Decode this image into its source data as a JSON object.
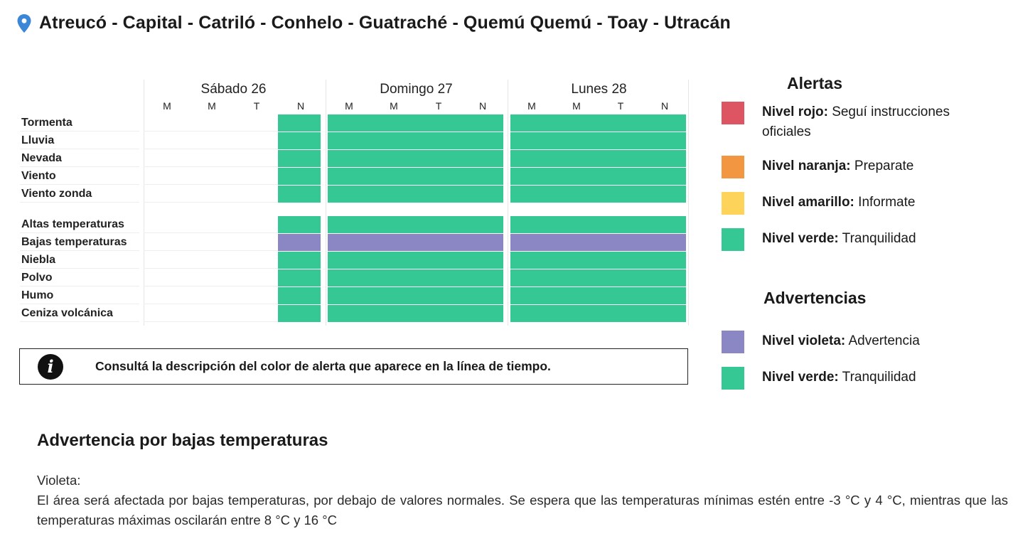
{
  "header": {
    "title": "Atreucó - Capital - Catriló - Conhelo - Guatraché - Quemú Quemú - Toay - Utracán",
    "icon": "location-pin-icon"
  },
  "timeline": {
    "days": [
      {
        "label": "Sábado 26",
        "shifts": [
          "M",
          "M",
          "T",
          "N"
        ]
      },
      {
        "label": "Domingo 27",
        "shifts": [
          "M",
          "M",
          "T",
          "N"
        ]
      },
      {
        "label": "Lunes 28",
        "shifts": [
          "M",
          "M",
          "T",
          "N"
        ]
      }
    ],
    "rows": [
      {
        "label": "Tormenta",
        "levels": [
          "",
          "",
          "",
          "green",
          "green",
          "green",
          "green",
          "green",
          "green",
          "green",
          "green",
          "green"
        ]
      },
      {
        "label": "Lluvia",
        "levels": [
          "",
          "",
          "",
          "green",
          "green",
          "green",
          "green",
          "green",
          "green",
          "green",
          "green",
          "green"
        ]
      },
      {
        "label": "Nevada",
        "levels": [
          "",
          "",
          "",
          "green",
          "green",
          "green",
          "green",
          "green",
          "green",
          "green",
          "green",
          "green"
        ]
      },
      {
        "label": "Viento",
        "levels": [
          "",
          "",
          "",
          "green",
          "green",
          "green",
          "green",
          "green",
          "green",
          "green",
          "green",
          "green"
        ]
      },
      {
        "label": "Viento zonda",
        "levels": [
          "",
          "",
          "",
          "green",
          "green",
          "green",
          "green",
          "green",
          "green",
          "green",
          "green",
          "green"
        ]
      },
      {
        "label": "Altas temperaturas",
        "levels": [
          "",
          "",
          "",
          "green",
          "green",
          "green",
          "green",
          "green",
          "green",
          "green",
          "green",
          "green"
        ]
      },
      {
        "label": "Bajas temperaturas",
        "levels": [
          "",
          "",
          "",
          "violet",
          "violet",
          "violet",
          "violet",
          "violet",
          "violet",
          "violet",
          "violet",
          "violet"
        ]
      },
      {
        "label": "Niebla",
        "levels": [
          "",
          "",
          "",
          "green",
          "green",
          "green",
          "green",
          "green",
          "green",
          "green",
          "green",
          "green"
        ]
      },
      {
        "label": "Polvo",
        "levels": [
          "",
          "",
          "",
          "green",
          "green",
          "green",
          "green",
          "green",
          "green",
          "green",
          "green",
          "green"
        ]
      },
      {
        "label": "Humo",
        "levels": [
          "",
          "",
          "",
          "green",
          "green",
          "green",
          "green",
          "green",
          "green",
          "green",
          "green",
          "green"
        ]
      },
      {
        "label": "Ceniza volcánica",
        "levels": [
          "",
          "",
          "",
          "green",
          "green",
          "green",
          "green",
          "green",
          "green",
          "green",
          "green",
          "green"
        ]
      }
    ]
  },
  "colors": {
    "red": "#dd5462",
    "orange": "#f39641",
    "yellow": "#fdd35a",
    "green": "#36c894",
    "violet": "#8b86c4"
  },
  "info": {
    "icon": "info-icon",
    "text": "Consultá la descripción del color de alerta que aparece en la línea de tiempo."
  },
  "legend": {
    "alerts_title": "Alertas",
    "alerts": [
      {
        "color": "red",
        "name": "Nivel rojo:",
        "desc": "Seguí instrucciones oficiales"
      },
      {
        "color": "orange",
        "name": "Nivel naranja:",
        "desc": "Preparate"
      },
      {
        "color": "yellow",
        "name": "Nivel amarillo:",
        "desc": "Informate"
      },
      {
        "color": "green",
        "name": "Nivel verde:",
        "desc": "Tranquilidad"
      }
    ],
    "warnings_title": "Advertencias",
    "warnings": [
      {
        "color": "violet",
        "name": "Nivel violeta:",
        "desc": "Advertencia"
      },
      {
        "color": "green",
        "name": "Nivel verde:",
        "desc": "Tranquilidad"
      }
    ]
  },
  "warning_section": {
    "title": "Advertencia por bajas temperaturas",
    "color_label": "Violeta:",
    "text": "El área será afectada por bajas temperaturas, por debajo de valores normales. Se espera que las temperaturas mínimas estén entre -3 °C y 4 °C, mientras que las temperaturas máximas oscilarán entre 8 °C y 16 °C"
  }
}
